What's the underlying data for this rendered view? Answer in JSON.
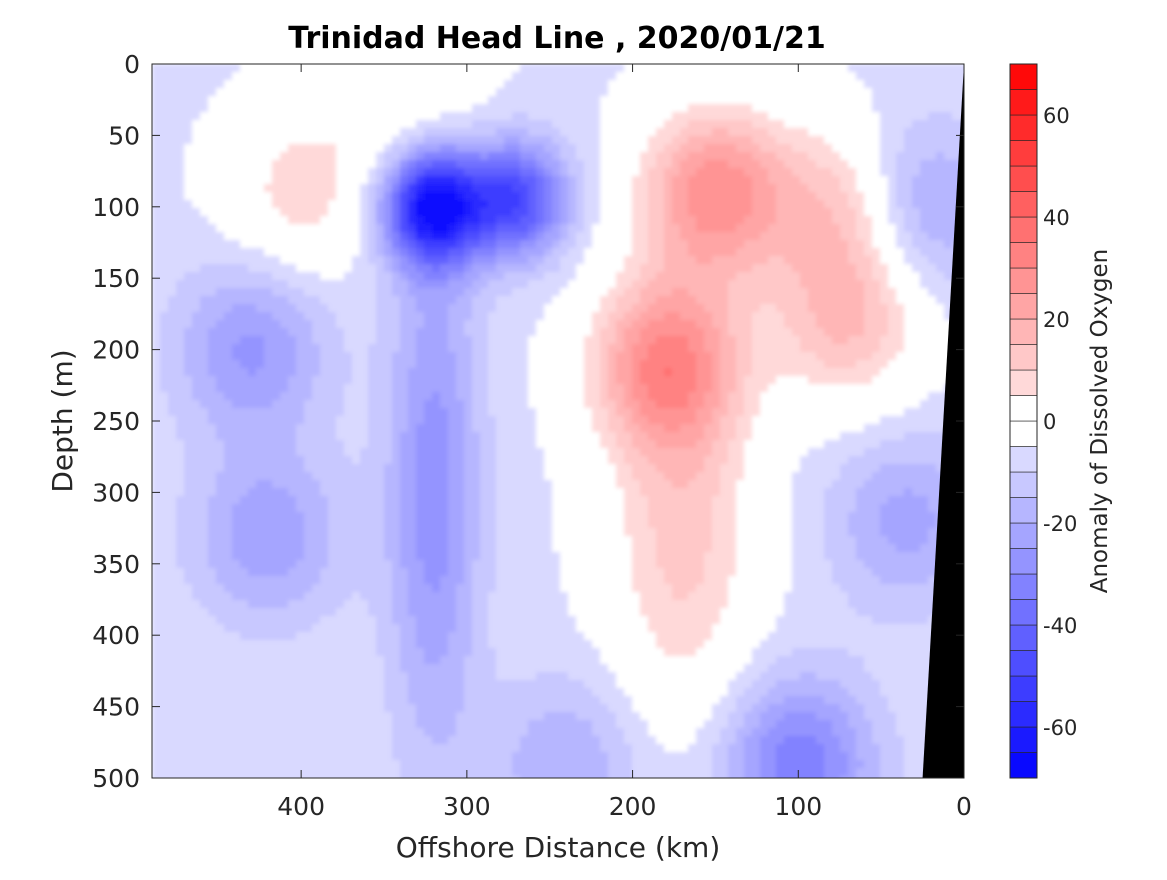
{
  "chart_data": {
    "type": "heatmap",
    "title": "Trinidad Head Line , 2020/01/21",
    "xlabel": "Offshore Distance (km)",
    "ylabel": "Depth (m)",
    "colorbar_label": "Anomaly of Dissolved Oxygen",
    "x_reversed": true,
    "xlim": [
      490,
      0
    ],
    "ylim": [
      0,
      500
    ],
    "y_reversed": true,
    "x_ticks": [
      400,
      300,
      200,
      100,
      0
    ],
    "y_ticks": [
      0,
      50,
      100,
      150,
      200,
      250,
      300,
      350,
      400,
      450,
      500
    ],
    "colorbar_ticks": [
      60,
      40,
      20,
      0,
      -20,
      -40,
      -60
    ],
    "clim": [
      -70,
      70
    ],
    "colormap": "blue-white-red",
    "color_low": "#0000ff",
    "color_zero": "#ffffff",
    "color_high": "#ff0000",
    "bathymetry_color": "#000000",
    "features": [
      {
        "label": "oxygen minimum",
        "x": 320,
        "y": 100,
        "value": -60
      },
      {
        "label": "deep negative tongue",
        "x": 320,
        "y": 300,
        "value": -22
      },
      {
        "label": "surface negative core",
        "x": 270,
        "y": 95,
        "value": -42
      },
      {
        "label": "west mid-depth negative",
        "x": 430,
        "y": 200,
        "value": -20
      },
      {
        "label": "west deep negative",
        "x": 420,
        "y": 330,
        "value": -18
      },
      {
        "label": "shallow positive",
        "x": 400,
        "y": 90,
        "value": 8
      },
      {
        "label": "surface positive",
        "x": 335,
        "y": 20,
        "value": 5
      },
      {
        "label": "positive core 1",
        "x": 150,
        "y": 90,
        "value": 28
      },
      {
        "label": "positive core 2",
        "x": 180,
        "y": 210,
        "value": 27
      },
      {
        "label": "positive core 3",
        "x": 70,
        "y": 100,
        "value": 15
      },
      {
        "label": "positive core 4",
        "x": 70,
        "y": 180,
        "value": 15
      },
      {
        "label": "positive body",
        "x": 170,
        "y": 330,
        "value": 12
      },
      {
        "label": "bottom negative",
        "x": 100,
        "y": 490,
        "value": -28
      },
      {
        "label": "bottom negative west",
        "x": 240,
        "y": 490,
        "value": -14
      },
      {
        "label": "nearshore negative",
        "x": 30,
        "y": 100,
        "value": -20
      },
      {
        "label": "nearshore deep negative",
        "x": 35,
        "y": 320,
        "value": -16
      }
    ],
    "bathymetry": [
      [
        0,
        0
      ],
      [
        25,
        500
      ]
    ]
  }
}
